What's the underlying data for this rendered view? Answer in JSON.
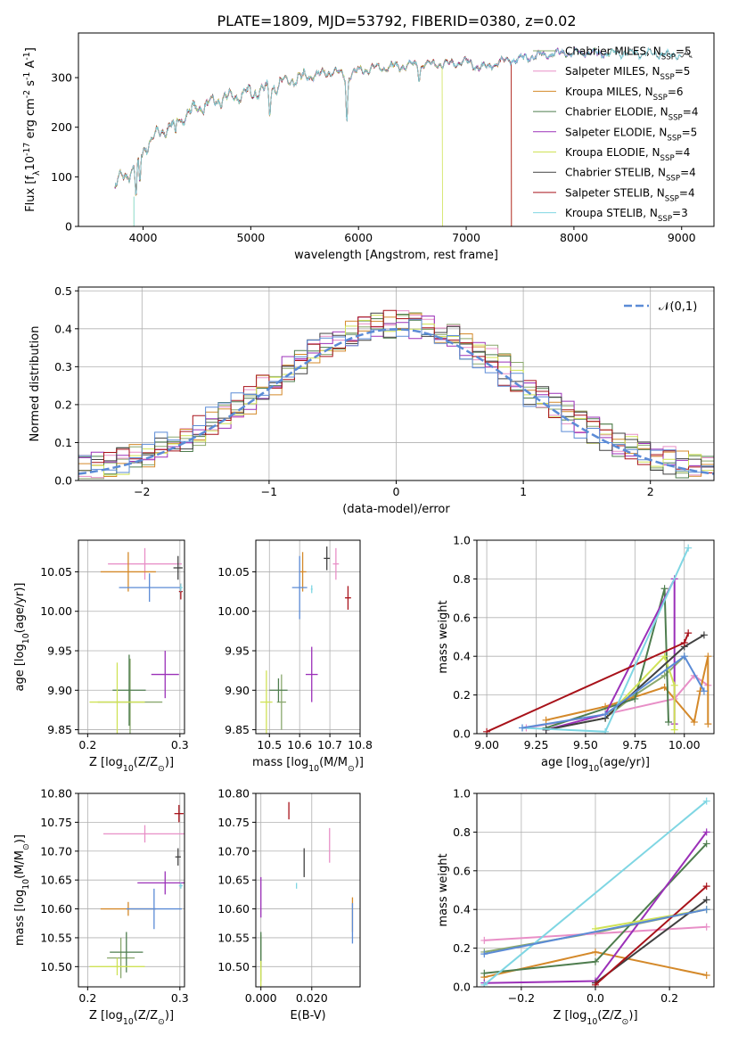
{
  "figure": {
    "title": "PLATE=1809, MJD=53792, FIBERID=0380, z=0.02"
  },
  "models": [
    {
      "label": "Chabrier MILES, N$_{SSP}$=5",
      "color": "#8aa86e"
    },
    {
      "label": "Salpeter MILES, N$_{SSP}$=5",
      "color": "#e88fc7"
    },
    {
      "label": "Kroupa MILES, N$_{SSP}$=6",
      "color": "#d4892a"
    },
    {
      "label": "Chabrier ELODIE, N$_{SSP}$=4",
      "color": "#4e7d4e"
    },
    {
      "label": "Salpeter ELODIE, N$_{SSP}$=5",
      "color": "#9b30b8"
    },
    {
      "label": "Kroupa ELODIE, N$_{SSP}$=4",
      "color": "#cfe256"
    },
    {
      "label": "Chabrier STELIB, N$_{SSP}$=4",
      "color": "#404040"
    },
    {
      "label": "Salpeter STELIB, N$_{SSP}$=4",
      "color": "#a8121a"
    },
    {
      "label": "Kroupa STELIB, N$_{SSP}$=3",
      "color": "#7fd6e3"
    },
    {
      "label": "",
      "color": "#5b8bd6"
    }
  ],
  "chart_data": [
    {
      "id": "spectrum",
      "type": "line",
      "xlabel": "wavelength [Angstrom, rest frame]",
      "ylabel": "Flux [f$_\\lambda$10$^{-17}$ erg cm$^{-2}$ s$^{-1}$ A$^{-1}$]",
      "xlim": [
        3400,
        9300
      ],
      "ylim": [
        0,
        390
      ],
      "xticks": [
        4000,
        5000,
        6000,
        7000,
        8000,
        9000
      ],
      "yticks": [
        0,
        100,
        200,
        300
      ],
      "grid": false,
      "legend_position": "right",
      "continuum": [
        [
          3740,
          80
        ],
        [
          3800,
          100
        ],
        [
          3900,
          110
        ],
        [
          3950,
          130
        ],
        [
          4000,
          155
        ],
        [
          4100,
          180
        ],
        [
          4200,
          195
        ],
        [
          4300,
          210
        ],
        [
          4400,
          225
        ],
        [
          4500,
          240
        ],
        [
          4600,
          245
        ],
        [
          4700,
          255
        ],
        [
          4800,
          260
        ],
        [
          4900,
          265
        ],
        [
          5000,
          270
        ],
        [
          5100,
          275
        ],
        [
          5200,
          280
        ],
        [
          5300,
          290
        ],
        [
          5400,
          295
        ],
        [
          5500,
          300
        ],
        [
          5600,
          305
        ],
        [
          5700,
          310
        ],
        [
          5800,
          312
        ],
        [
          5900,
          300
        ],
        [
          6000,
          315
        ],
        [
          6100,
          318
        ],
        [
          6200,
          320
        ],
        [
          6300,
          322
        ],
        [
          6400,
          323
        ],
        [
          6500,
          325
        ],
        [
          6600,
          326
        ],
        [
          6700,
          327
        ],
        [
          6800,
          328
        ],
        [
          6900,
          330
        ],
        [
          7000,
          332
        ],
        [
          7100,
          322
        ],
        [
          7200,
          320
        ],
        [
          7300,
          332
        ],
        [
          7400,
          335
        ],
        [
          7500,
          338
        ],
        [
          7600,
          342
        ],
        [
          7700,
          345
        ],
        [
          7800,
          348
        ],
        [
          7900,
          350
        ],
        [
          8000,
          350
        ],
        [
          8100,
          350
        ],
        [
          8200,
          349
        ],
        [
          8300,
          349
        ],
        [
          8400,
          350
        ],
        [
          8500,
          350
        ],
        [
          8600,
          350
        ],
        [
          8700,
          348
        ],
        [
          8800,
          347
        ],
        [
          8900,
          346
        ],
        [
          9000,
          345
        ],
        [
          9100,
          342
        ]
      ],
      "absorption_features": [
        {
          "x": 3935,
          "depth": 70
        },
        {
          "x": 3970,
          "depth": 60
        },
        {
          "x": 4300,
          "depth": 35
        },
        {
          "x": 5175,
          "depth": 55
        },
        {
          "x": 5892,
          "depth": 90
        },
        {
          "x": 6563,
          "depth": 30
        }
      ],
      "model_end_wavelengths": [
        8400,
        8300,
        7420,
        8300,
        8300,
        6780,
        9100,
        7420,
        9000
      ],
      "model_dropouts": [
        {
          "model": 5,
          "x": 6780
        },
        {
          "model": 2,
          "x": 7420
        },
        {
          "model": 7,
          "x": 7420
        }
      ]
    },
    {
      "id": "residuals",
      "type": "step",
      "xlabel": "(data-model)/error",
      "ylabel": "Normed distribution",
      "xlim": [
        -2.5,
        2.5
      ],
      "ylim": [
        0,
        0.51
      ],
      "xticks": [
        -2,
        -1,
        0,
        1,
        2
      ],
      "yticks": [
        0.0,
        0.1,
        0.2,
        0.3,
        0.4,
        0.5
      ],
      "grid": true,
      "legend_position": "top-right",
      "reference_label": "$\\mathcal{N}(0,1)$",
      "reference_color": "#5b8bd6",
      "bin_width": 0.1
    },
    {
      "id": "age-vs-Z",
      "type": "errorbar",
      "xlabel": "Z [log$_{10}$(Z/Z$_\\odot$)]",
      "ylabel": "age  [log$_{10}$(age/yr)]",
      "xlim": [
        0.19,
        0.305
      ],
      "ylim": [
        9.845,
        10.09
      ],
      "xticks": [
        0.2,
        0.3
      ],
      "yticks": [
        9.85,
        9.9,
        9.95,
        10.0,
        10.05
      ],
      "grid": true,
      "points": [
        {
          "model": 0,
          "x": 0.246,
          "y": 9.885,
          "xerr": 0.035,
          "yerr": 0.055
        },
        {
          "model": 1,
          "x": 0.262,
          "y": 10.06,
          "xerr": 0.04,
          "yerr": 0.02
        },
        {
          "model": 2,
          "x": 0.244,
          "y": 10.05,
          "xerr": 0.03,
          "yerr": 0.025
        },
        {
          "model": 3,
          "x": 0.245,
          "y": 9.9,
          "xerr": 0.018,
          "yerr": 0.045
        },
        {
          "model": 4,
          "x": 0.284,
          "y": 9.92,
          "xerr": 0.015,
          "yerr": 0.03
        },
        {
          "model": 5,
          "x": 0.232,
          "y": 9.885,
          "xerr": 0.03,
          "yerr": 0.05
        },
        {
          "model": 6,
          "x": 0.298,
          "y": 10.055,
          "xerr": 0.005,
          "yerr": 0.015
        },
        {
          "model": 7,
          "x": 0.301,
          "y": 10.025,
          "xerr": 0.002,
          "yerr": 0.01
        },
        {
          "model": 8,
          "x": 0.301,
          "y": 10.03,
          "xerr": 0.002,
          "yerr": 0.005
        },
        {
          "model": 9,
          "x": 0.267,
          "y": 10.03,
          "xerr": 0.033,
          "yerr": 0.018
        }
      ]
    },
    {
      "id": "age-vs-mass",
      "type": "errorbar",
      "xlabel": "mass [log$_{10}$(M/M$_\\odot$)]",
      "ylabel": "",
      "xlim": [
        10.455,
        10.8
      ],
      "ylim": [
        9.845,
        10.09
      ],
      "xticks": [
        10.5,
        10.6,
        10.7,
        10.8
      ],
      "yticks": [
        9.85,
        9.9,
        9.95,
        10.0,
        10.05
      ],
      "grid": true,
      "points": [
        {
          "model": 0,
          "x": 10.54,
          "y": 9.885,
          "xerr": 0.015,
          "yerr": 0.035
        },
        {
          "model": 1,
          "x": 10.72,
          "y": 10.06,
          "xerr": 0.01,
          "yerr": 0.02
        },
        {
          "model": 2,
          "x": 10.61,
          "y": 10.05,
          "xerr": 0.012,
          "yerr": 0.025
        },
        {
          "model": 3,
          "x": 10.53,
          "y": 9.9,
          "xerr": 0.03,
          "yerr": 0.015
        },
        {
          "model": 4,
          "x": 10.64,
          "y": 9.92,
          "xerr": 0.02,
          "yerr": 0.035
        },
        {
          "model": 5,
          "x": 10.49,
          "y": 9.885,
          "xerr": 0.02,
          "yerr": 0.04
        },
        {
          "model": 6,
          "x": 10.69,
          "y": 10.067,
          "xerr": 0.01,
          "yerr": 0.015
        },
        {
          "model": 7,
          "x": 10.76,
          "y": 10.017,
          "xerr": 0.01,
          "yerr": 0.015
        },
        {
          "model": 8,
          "x": 10.64,
          "y": 10.028,
          "xerr": 0.003,
          "yerr": 0.005
        },
        {
          "model": 9,
          "x": 10.6,
          "y": 10.03,
          "xerr": 0.025,
          "yerr": 0.04
        }
      ]
    },
    {
      "id": "massweight-vs-age",
      "type": "line",
      "xlabel": "age  [log$_{10}$(age/yr)]",
      "ylabel": "mass weight",
      "xlim": [
        8.95,
        10.15
      ],
      "ylim": [
        0,
        1.0
      ],
      "xticks": [
        9.0,
        9.25,
        9.5,
        9.75,
        10.0
      ],
      "yticks": [
        0.0,
        0.2,
        0.4,
        0.6,
        0.8,
        1.0
      ],
      "grid": true,
      "series": [
        {
          "model": 0,
          "points": [
            [
              9.3,
              0.02
            ],
            [
              9.6,
              0.08
            ],
            [
              9.75,
              0.2
            ],
            [
              9.9,
              0.3
            ],
            [
              10.0,
              0.4
            ]
          ]
        },
        {
          "model": 1,
          "points": [
            [
              9.2,
              0.03
            ],
            [
              9.6,
              0.1
            ],
            [
              9.95,
              0.18
            ],
            [
              10.05,
              0.3
            ],
            [
              10.12,
              0.25
            ]
          ]
        },
        {
          "model": 2,
          "points": [
            [
              9.3,
              0.07
            ],
            [
              9.6,
              0.14
            ],
            [
              9.9,
              0.24
            ],
            [
              10.05,
              0.06
            ],
            [
              10.08,
              0.22
            ],
            [
              10.12,
              0.4
            ],
            [
              10.12,
              0.05
            ]
          ]
        },
        {
          "model": 3,
          "points": [
            [
              9.3,
              0.03
            ],
            [
              9.75,
              0.18
            ],
            [
              9.9,
              0.75
            ],
            [
              9.92,
              0.06
            ]
          ]
        },
        {
          "model": 4,
          "points": [
            [
              9.3,
              0.02
            ],
            [
              9.6,
              0.1
            ],
            [
              9.95,
              0.8
            ],
            [
              9.95,
              0.05
            ]
          ]
        },
        {
          "model": 5,
          "points": [
            [
              9.6,
              0.08
            ],
            [
              9.9,
              0.4
            ],
            [
              9.95,
              0.25
            ],
            [
              9.95,
              0.02
            ]
          ]
        },
        {
          "model": 6,
          "points": [
            [
              9.3,
              0.02
            ],
            [
              9.6,
              0.08
            ],
            [
              10.0,
              0.45
            ],
            [
              10.1,
              0.51
            ]
          ]
        },
        {
          "model": 7,
          "points": [
            [
              9.0,
              0.01
            ],
            [
              10.0,
              0.47
            ],
            [
              10.02,
              0.52
            ]
          ]
        },
        {
          "model": 8,
          "points": [
            [
              9.18,
              0.03
            ],
            [
              9.6,
              0.01
            ],
            [
              10.02,
              0.96
            ]
          ]
        },
        {
          "model": 9,
          "points": [
            [
              9.18,
              0.03
            ],
            [
              9.6,
              0.1
            ],
            [
              10.0,
              0.4
            ],
            [
              10.1,
              0.22
            ]
          ]
        }
      ]
    },
    {
      "id": "mass-vs-Z",
      "type": "errorbar",
      "xlabel": "Z [log$_{10}$(Z/Z$_\\odot$)]",
      "ylabel": "mass [log$_{10}$(M/M$_\\odot$)]",
      "xlim": [
        0.19,
        0.305
      ],
      "ylim": [
        10.465,
        10.8
      ],
      "xticks": [
        0.2,
        0.3
      ],
      "yticks": [
        10.5,
        10.55,
        10.6,
        10.65,
        10.7,
        10.75,
        10.8
      ],
      "grid": true,
      "points": [
        {
          "model": 0,
          "x": 0.236,
          "y": 10.515,
          "xerr": 0.015,
          "yerr": 0.035
        },
        {
          "model": 1,
          "x": 0.262,
          "y": 10.73,
          "xerr": 0.045,
          "yerr": 0.015
        },
        {
          "model": 2,
          "x": 0.244,
          "y": 10.6,
          "xerr": 0.03,
          "yerr": 0.012
        },
        {
          "model": 3,
          "x": 0.242,
          "y": 10.525,
          "xerr": 0.018,
          "yerr": 0.035
        },
        {
          "model": 4,
          "x": 0.284,
          "y": 10.645,
          "xerr": 0.03,
          "yerr": 0.02
        },
        {
          "model": 5,
          "x": 0.232,
          "y": 10.5,
          "xerr": 0.03,
          "yerr": 0.015
        },
        {
          "model": 6,
          "x": 0.298,
          "y": 10.69,
          "xerr": 0.003,
          "yerr": 0.015
        },
        {
          "model": 7,
          "x": 0.299,
          "y": 10.765,
          "xerr": 0.005,
          "yerr": 0.015
        },
        {
          "model": 8,
          "x": 0.301,
          "y": 10.64,
          "xerr": 0.002,
          "yerr": 0.005
        },
        {
          "model": 9,
          "x": 0.272,
          "y": 10.6,
          "xerr": 0.03,
          "yerr": 0.035
        }
      ]
    },
    {
      "id": "mass-vs-EBV",
      "type": "errorbar",
      "xlabel": "E(B-V)",
      "ylabel": "",
      "xlim": [
        -0.002,
        0.039
      ],
      "ylim": [
        10.465,
        10.8
      ],
      "xticks": [
        0.0,
        0.02
      ],
      "yticks": [
        10.5,
        10.55,
        10.6,
        10.65,
        10.7,
        10.75,
        10.8
      ],
      "grid": true,
      "points": [
        {
          "model": 0,
          "x": 0.0,
          "y": 10.515,
          "xerr": 0.0,
          "yerr": 0.04
        },
        {
          "model": 1,
          "x": 0.027,
          "y": 10.71,
          "xerr": 0.0,
          "yerr": 0.03
        },
        {
          "model": 2,
          "x": 0.036,
          "y": 10.59,
          "xerr": 0.0,
          "yerr": 0.03
        },
        {
          "model": 3,
          "x": 0.0,
          "y": 10.53,
          "xerr": 0.0,
          "yerr": 0.03
        },
        {
          "model": 4,
          "x": 0.0,
          "y": 10.62,
          "xerr": 0.0,
          "yerr": 0.035
        },
        {
          "model": 5,
          "x": 0.0,
          "y": 10.48,
          "xerr": 0.0,
          "yerr": 0.03
        },
        {
          "model": 6,
          "x": 0.017,
          "y": 10.68,
          "xerr": 0.0,
          "yerr": 0.025
        },
        {
          "model": 7,
          "x": 0.011,
          "y": 10.77,
          "xerr": 0.0,
          "yerr": 0.015
        },
        {
          "model": 8,
          "x": 0.014,
          "y": 10.64,
          "xerr": 0.0,
          "yerr": 0.005
        },
        {
          "model": 9,
          "x": 0.036,
          "y": 10.575,
          "xerr": 0.0,
          "yerr": 0.035
        }
      ]
    },
    {
      "id": "massweight-vs-Z",
      "type": "line",
      "xlabel": "Z [log$_{10}$(Z/Z$_\\odot$)]",
      "ylabel": "mass weight",
      "xlim": [
        -0.32,
        0.32
      ],
      "ylim": [
        0,
        1.0
      ],
      "xticks": [
        -0.2,
        0.0,
        0.2
      ],
      "yticks": [
        0.0,
        0.2,
        0.4,
        0.6,
        0.8,
        1.0
      ],
      "grid": true,
      "series": [
        {
          "model": 0,
          "points": [
            [
              -0.3,
              0.18
            ],
            [
              0.0,
              0.28
            ],
            [
              0.3,
              0.4
            ]
          ]
        },
        {
          "model": 1,
          "points": [
            [
              -0.3,
              0.24
            ],
            [
              0.3,
              0.31
            ]
          ]
        },
        {
          "model": 2,
          "points": [
            [
              -0.3,
              0.05
            ],
            [
              0.0,
              0.18
            ],
            [
              0.3,
              0.06
            ]
          ]
        },
        {
          "model": 3,
          "points": [
            [
              -0.3,
              0.07
            ],
            [
              0.0,
              0.13
            ],
            [
              0.3,
              0.74
            ]
          ]
        },
        {
          "model": 4,
          "points": [
            [
              -0.3,
              0.02
            ],
            [
              0.0,
              0.03
            ],
            [
              0.3,
              0.8
            ]
          ]
        },
        {
          "model": 5,
          "points": [
            [
              0.0,
              0.3
            ],
            [
              0.3,
              0.4
            ]
          ]
        },
        {
          "model": 6,
          "points": [
            [
              0.0,
              0.02
            ],
            [
              0.3,
              0.45
            ]
          ]
        },
        {
          "model": 7,
          "points": [
            [
              0.0,
              0.01
            ],
            [
              0.3,
              0.52
            ]
          ]
        },
        {
          "model": 8,
          "points": [
            [
              -0.3,
              0.01
            ],
            [
              0.3,
              0.96
            ]
          ]
        },
        {
          "model": 9,
          "points": [
            [
              -0.3,
              0.17
            ],
            [
              0.3,
              0.4
            ]
          ]
        }
      ]
    }
  ]
}
